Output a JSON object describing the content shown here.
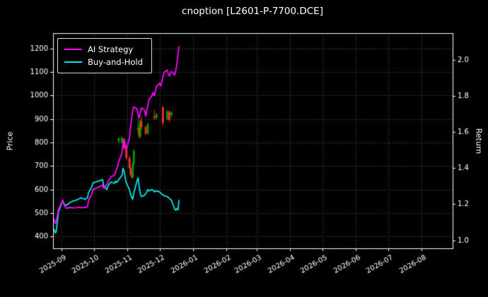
{
  "window": {
    "title": "cnoption [L2601-P-7700.DCE]"
  },
  "chart_data": {
    "type": "line",
    "title": "cnoption [L2601-P-7700.DCE]",
    "ylabel_left": "Price",
    "ylabel_right": "Return",
    "xlabel": "",
    "grid": "dotted",
    "colors": {
      "background": "#000000",
      "text": "#ffffff",
      "frame": "#ffffff",
      "grid": "#525252"
    },
    "xlim": [
      "2025-08-24",
      "2026-08-30"
    ],
    "x_ticks": [
      "2025-09",
      "2025-10",
      "2025-11",
      "2025-12",
      "2026-01",
      "2026-02",
      "2026-03",
      "2026-04",
      "2026-05",
      "2026-06",
      "2026-07",
      "2026-08"
    ],
    "price_ylim": [
      350,
      1265
    ],
    "price_ticks": [
      400,
      500,
      600,
      700,
      800,
      900,
      1000,
      1100,
      1200
    ],
    "return_ylim": [
      0.955,
      2.15
    ],
    "return_ticks": [
      1.0,
      1.2,
      1.4,
      1.6,
      1.8,
      2.0
    ],
    "legend": {
      "position": "upper-left",
      "entries": [
        {
          "label": "AI Strategy",
          "color": "#ff00ff"
        },
        {
          "label": "Buy-and-Hold",
          "color": "#00e6e6"
        }
      ]
    },
    "series": [
      {
        "name": "AI Strategy",
        "color": "#ff00ff",
        "axis": "price",
        "points": [
          [
            "2025-08-25",
            475
          ],
          [
            "2025-08-26",
            455
          ],
          [
            "2025-08-27",
            465
          ],
          [
            "2025-08-28",
            490
          ],
          [
            "2025-08-29",
            515
          ],
          [
            "2025-09-01",
            545
          ],
          [
            "2025-09-02",
            556
          ],
          [
            "2025-09-03",
            540
          ],
          [
            "2025-09-04",
            528
          ],
          [
            "2025-09-05",
            520
          ],
          [
            "2025-09-09",
            524
          ],
          [
            "2025-09-11",
            522
          ],
          [
            "2025-09-15",
            523
          ],
          [
            "2025-09-17",
            525
          ],
          [
            "2025-09-19",
            523
          ],
          [
            "2025-09-23",
            524
          ],
          [
            "2025-09-25",
            526
          ],
          [
            "2025-09-26",
            555
          ],
          [
            "2025-09-29",
            580
          ],
          [
            "2025-09-30",
            600
          ],
          [
            "2025-10-09",
            618
          ],
          [
            "2025-10-10",
            605
          ],
          [
            "2025-10-13",
            622
          ],
          [
            "2025-10-14",
            633
          ],
          [
            "2025-10-15",
            640
          ],
          [
            "2025-10-16",
            648
          ],
          [
            "2025-10-17",
            655
          ],
          [
            "2025-10-20",
            662
          ],
          [
            "2025-10-21",
            672
          ],
          [
            "2025-10-22",
            688
          ],
          [
            "2025-10-23",
            700
          ],
          [
            "2025-10-24",
            718
          ],
          [
            "2025-10-27",
            755
          ],
          [
            "2025-10-28",
            795
          ],
          [
            "2025-10-29",
            815
          ],
          [
            "2025-10-30",
            792
          ],
          [
            "2025-10-31",
            770
          ],
          [
            "2025-11-03",
            820
          ],
          [
            "2025-11-04",
            868
          ],
          [
            "2025-11-05",
            900
          ],
          [
            "2025-11-06",
            938
          ],
          [
            "2025-11-07",
            952
          ],
          [
            "2025-11-10",
            942
          ],
          [
            "2025-11-11",
            918
          ],
          [
            "2025-11-12",
            905
          ],
          [
            "2025-11-13",
            928
          ],
          [
            "2025-11-14",
            948
          ],
          [
            "2025-11-17",
            938
          ],
          [
            "2025-11-18",
            912
          ],
          [
            "2025-11-19",
            935
          ],
          [
            "2025-11-20",
            958
          ],
          [
            "2025-11-21",
            982
          ],
          [
            "2025-11-24",
            1000
          ],
          [
            "2025-11-25",
            1012
          ],
          [
            "2025-11-26",
            1000
          ],
          [
            "2025-11-27",
            1018
          ],
          [
            "2025-11-28",
            1038
          ],
          [
            "2025-12-01",
            1052
          ],
          [
            "2025-12-02",
            1040
          ],
          [
            "2025-12-03",
            1058
          ],
          [
            "2025-12-04",
            1078
          ],
          [
            "2025-12-05",
            1098
          ],
          [
            "2025-12-08",
            1108
          ],
          [
            "2025-12-09",
            1092
          ],
          [
            "2025-12-10",
            1082
          ],
          [
            "2025-12-11",
            1098
          ],
          [
            "2025-12-12",
            1102
          ],
          [
            "2025-12-15",
            1088
          ],
          [
            "2025-12-16",
            1108
          ],
          [
            "2025-12-17",
            1135
          ],
          [
            "2025-12-18",
            1175
          ],
          [
            "2025-12-19",
            1210
          ]
        ]
      },
      {
        "name": "Buy-and-Hold",
        "color": "#00e6e6",
        "axis": "price",
        "points": [
          [
            "2025-08-25",
            432
          ],
          [
            "2025-08-26",
            415
          ],
          [
            "2025-08-27",
            422
          ],
          [
            "2025-08-28",
            462
          ],
          [
            "2025-08-29",
            505
          ],
          [
            "2025-09-01",
            542
          ],
          [
            "2025-09-02",
            554
          ],
          [
            "2025-09-03",
            540
          ],
          [
            "2025-09-04",
            536
          ],
          [
            "2025-09-05",
            532
          ],
          [
            "2025-09-09",
            545
          ],
          [
            "2025-09-11",
            550
          ],
          [
            "2025-09-15",
            556
          ],
          [
            "2025-09-17",
            560
          ],
          [
            "2025-09-19",
            565
          ],
          [
            "2025-09-23",
            558
          ],
          [
            "2025-09-25",
            566
          ],
          [
            "2025-09-26",
            588
          ],
          [
            "2025-09-29",
            612
          ],
          [
            "2025-09-30",
            628
          ],
          [
            "2025-10-09",
            642
          ],
          [
            "2025-10-10",
            616
          ],
          [
            "2025-10-13",
            600
          ],
          [
            "2025-10-14",
            614
          ],
          [
            "2025-10-15",
            622
          ],
          [
            "2025-10-16",
            628
          ],
          [
            "2025-10-17",
            632
          ],
          [
            "2025-10-20",
            626
          ],
          [
            "2025-10-21",
            636
          ],
          [
            "2025-10-22",
            630
          ],
          [
            "2025-10-23",
            634
          ],
          [
            "2025-10-24",
            642
          ],
          [
            "2025-10-27",
            660
          ],
          [
            "2025-10-28",
            690
          ],
          [
            "2025-10-29",
            678
          ],
          [
            "2025-10-30",
            652
          ],
          [
            "2025-10-31",
            628
          ],
          [
            "2025-11-03",
            600
          ],
          [
            "2025-11-04",
            578
          ],
          [
            "2025-11-05",
            568
          ],
          [
            "2025-11-06",
            558
          ],
          [
            "2025-11-07",
            585
          ],
          [
            "2025-11-10",
            638
          ],
          [
            "2025-11-11",
            650
          ],
          [
            "2025-11-12",
            610
          ],
          [
            "2025-11-13",
            582
          ],
          [
            "2025-11-14",
            570
          ],
          [
            "2025-11-17",
            576
          ],
          [
            "2025-11-18",
            582
          ],
          [
            "2025-11-19",
            590
          ],
          [
            "2025-11-20",
            600
          ],
          [
            "2025-11-21",
            594
          ],
          [
            "2025-11-24",
            600
          ],
          [
            "2025-11-25",
            596
          ],
          [
            "2025-11-26",
            590
          ],
          [
            "2025-11-27",
            594
          ],
          [
            "2025-12-01",
            590
          ],
          [
            "2025-12-02",
            585
          ],
          [
            "2025-12-03",
            580
          ],
          [
            "2025-12-04",
            578
          ],
          [
            "2025-12-05",
            574
          ],
          [
            "2025-12-08",
            570
          ],
          [
            "2025-12-09",
            566
          ],
          [
            "2025-12-10",
            562
          ],
          [
            "2025-12-11",
            558
          ],
          [
            "2025-12-12",
            554
          ],
          [
            "2025-12-15",
            516
          ],
          [
            "2025-12-16",
            512
          ],
          [
            "2025-12-17",
            520
          ],
          [
            "2025-12-18",
            514
          ],
          [
            "2025-12-19",
            556
          ]
        ]
      }
    ],
    "candles": {
      "up_color": "#00a000",
      "down_color": "#ff2a2a",
      "columns": [
        "date",
        "open",
        "high",
        "low",
        "close"
      ],
      "data": [
        [
          "2025-10-24",
          805,
          822,
          795,
          818
        ],
        [
          "2025-10-27",
          800,
          826,
          793,
          820
        ],
        [
          "2025-10-29",
          815,
          818,
          770,
          776
        ],
        [
          "2025-10-31",
          776,
          782,
          726,
          734
        ],
        [
          "2025-11-03",
          734,
          744,
          686,
          692
        ],
        [
          "2025-11-04",
          692,
          700,
          658,
          664
        ],
        [
          "2025-11-05",
          664,
          676,
          646,
          652
        ],
        [
          "2025-11-06",
          652,
          716,
          648,
          710
        ],
        [
          "2025-11-07",
          710,
          772,
          704,
          764
        ],
        [
          "2025-11-11",
          852,
          906,
          838,
          862
        ],
        [
          "2025-11-12",
          862,
          876,
          816,
          826
        ],
        [
          "2025-11-13",
          826,
          900,
          820,
          892
        ],
        [
          "2025-11-14",
          892,
          912,
          856,
          866
        ],
        [
          "2025-11-18",
          866,
          872,
          830,
          838
        ],
        [
          "2025-11-20",
          838,
          884,
          834,
          878
        ],
        [
          "2025-11-26",
          912,
          938,
          896,
          904
        ],
        [
          "2025-11-28",
          904,
          926,
          898,
          920
        ],
        [
          "2025-12-04",
          950,
          956,
          872,
          882
        ],
        [
          "2025-12-08",
          900,
          940,
          894,
          932
        ],
        [
          "2025-12-10",
          932,
          936,
          886,
          896
        ],
        [
          "2025-12-12",
          916,
          932,
          906,
          926
        ]
      ]
    }
  }
}
